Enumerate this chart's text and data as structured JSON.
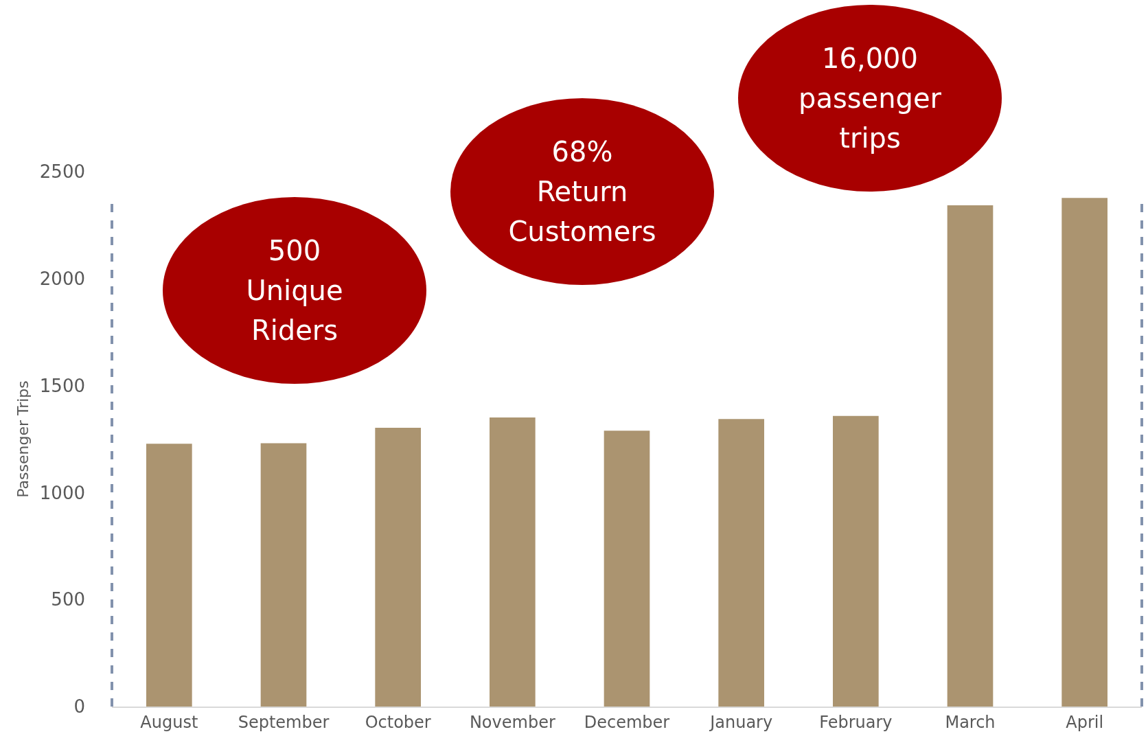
{
  "chart_data": {
    "type": "bar",
    "ylabel": "Passenger Trips",
    "categories": [
      "August",
      "September",
      "October",
      "November",
      "December",
      "January",
      "February",
      "March",
      "April"
    ],
    "values": [
      1228,
      1231,
      1303,
      1351,
      1289,
      1344,
      1358,
      2343,
      2377
    ],
    "color": "#ab9470",
    "ylim": [
      0,
      2500
    ],
    "yticks": [
      0,
      500,
      1000,
      1500,
      2000,
      2500
    ],
    "grid": false,
    "legend": false,
    "annotations": [
      "500\nUnique\nRiders",
      "68%\nReturn\nCustomers",
      "16,000\npassenger\ntrips"
    ]
  }
}
